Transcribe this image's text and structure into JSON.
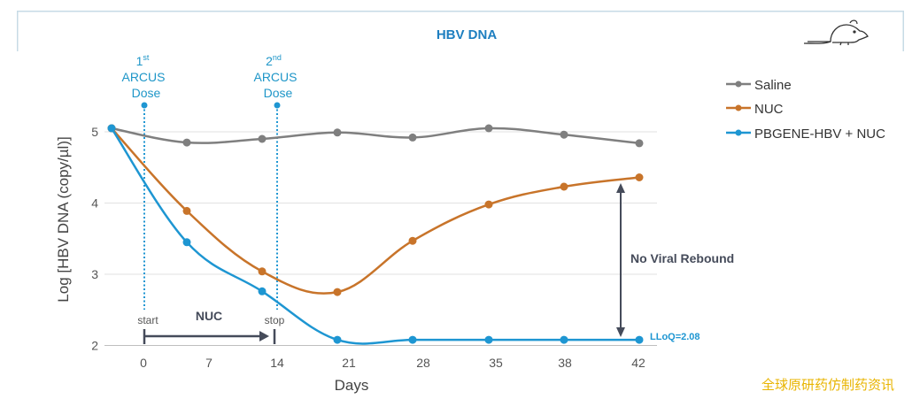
{
  "watermark": "全球原研药仿制药资讯",
  "chart_data": {
    "type": "line",
    "title": "HBV DNA",
    "xlabel": "Days",
    "ylabel": "Log [HBV DNA (copy/µl)]",
    "x_categories": [
      "",
      "0",
      "7",
      "14",
      "21",
      "28",
      "35",
      "38",
      "42"
    ],
    "yticks": [
      "2",
      "3",
      "4",
      "5"
    ],
    "ylim": [
      2,
      5.2
    ],
    "grid": "horizontal",
    "legend_position": "top-right",
    "colors": {
      "Saline": "#7f7f7f",
      "NUC": "#c8742a",
      "PBGENE-HBV + NUC": "#1e96d2",
      "annotation": "#454b5a",
      "watermark": "#e8b400"
    },
    "series": [
      {
        "name": "Saline",
        "x": [
          "",
          "7",
          "14",
          "21",
          "28",
          "35",
          "38",
          "42"
        ],
        "values": [
          5.05,
          4.85,
          4.9,
          4.99,
          4.92,
          5.05,
          4.96,
          4.84
        ]
      },
      {
        "name": "NUC",
        "x": [
          "",
          "7",
          "14",
          "21",
          "28",
          "35",
          "38",
          "42"
        ],
        "values": [
          5.05,
          3.89,
          3.04,
          2.75,
          3.47,
          3.98,
          4.23,
          4.36
        ]
      },
      {
        "name": "PBGENE-HBV + NUC",
        "x": [
          "",
          "7",
          "14",
          "21",
          "28",
          "35",
          "38",
          "42"
        ],
        "values": [
          5.05,
          3.45,
          2.76,
          2.08,
          2.08,
          2.08,
          2.08,
          2.08
        ]
      }
    ],
    "annotations": {
      "dose1_sup": "st",
      "dose1_num": "1",
      "dose1_line2": "ARCUS",
      "dose1_line3": "Dose",
      "dose2_sup": "nd",
      "dose2_num": "2",
      "dose2_line2": "ARCUS",
      "dose2_line3": "Dose",
      "start": "start",
      "stop": "stop",
      "nuc": "NUC",
      "rebound": "No Viral Rebound",
      "lloq": "LLoQ=2.08"
    }
  }
}
